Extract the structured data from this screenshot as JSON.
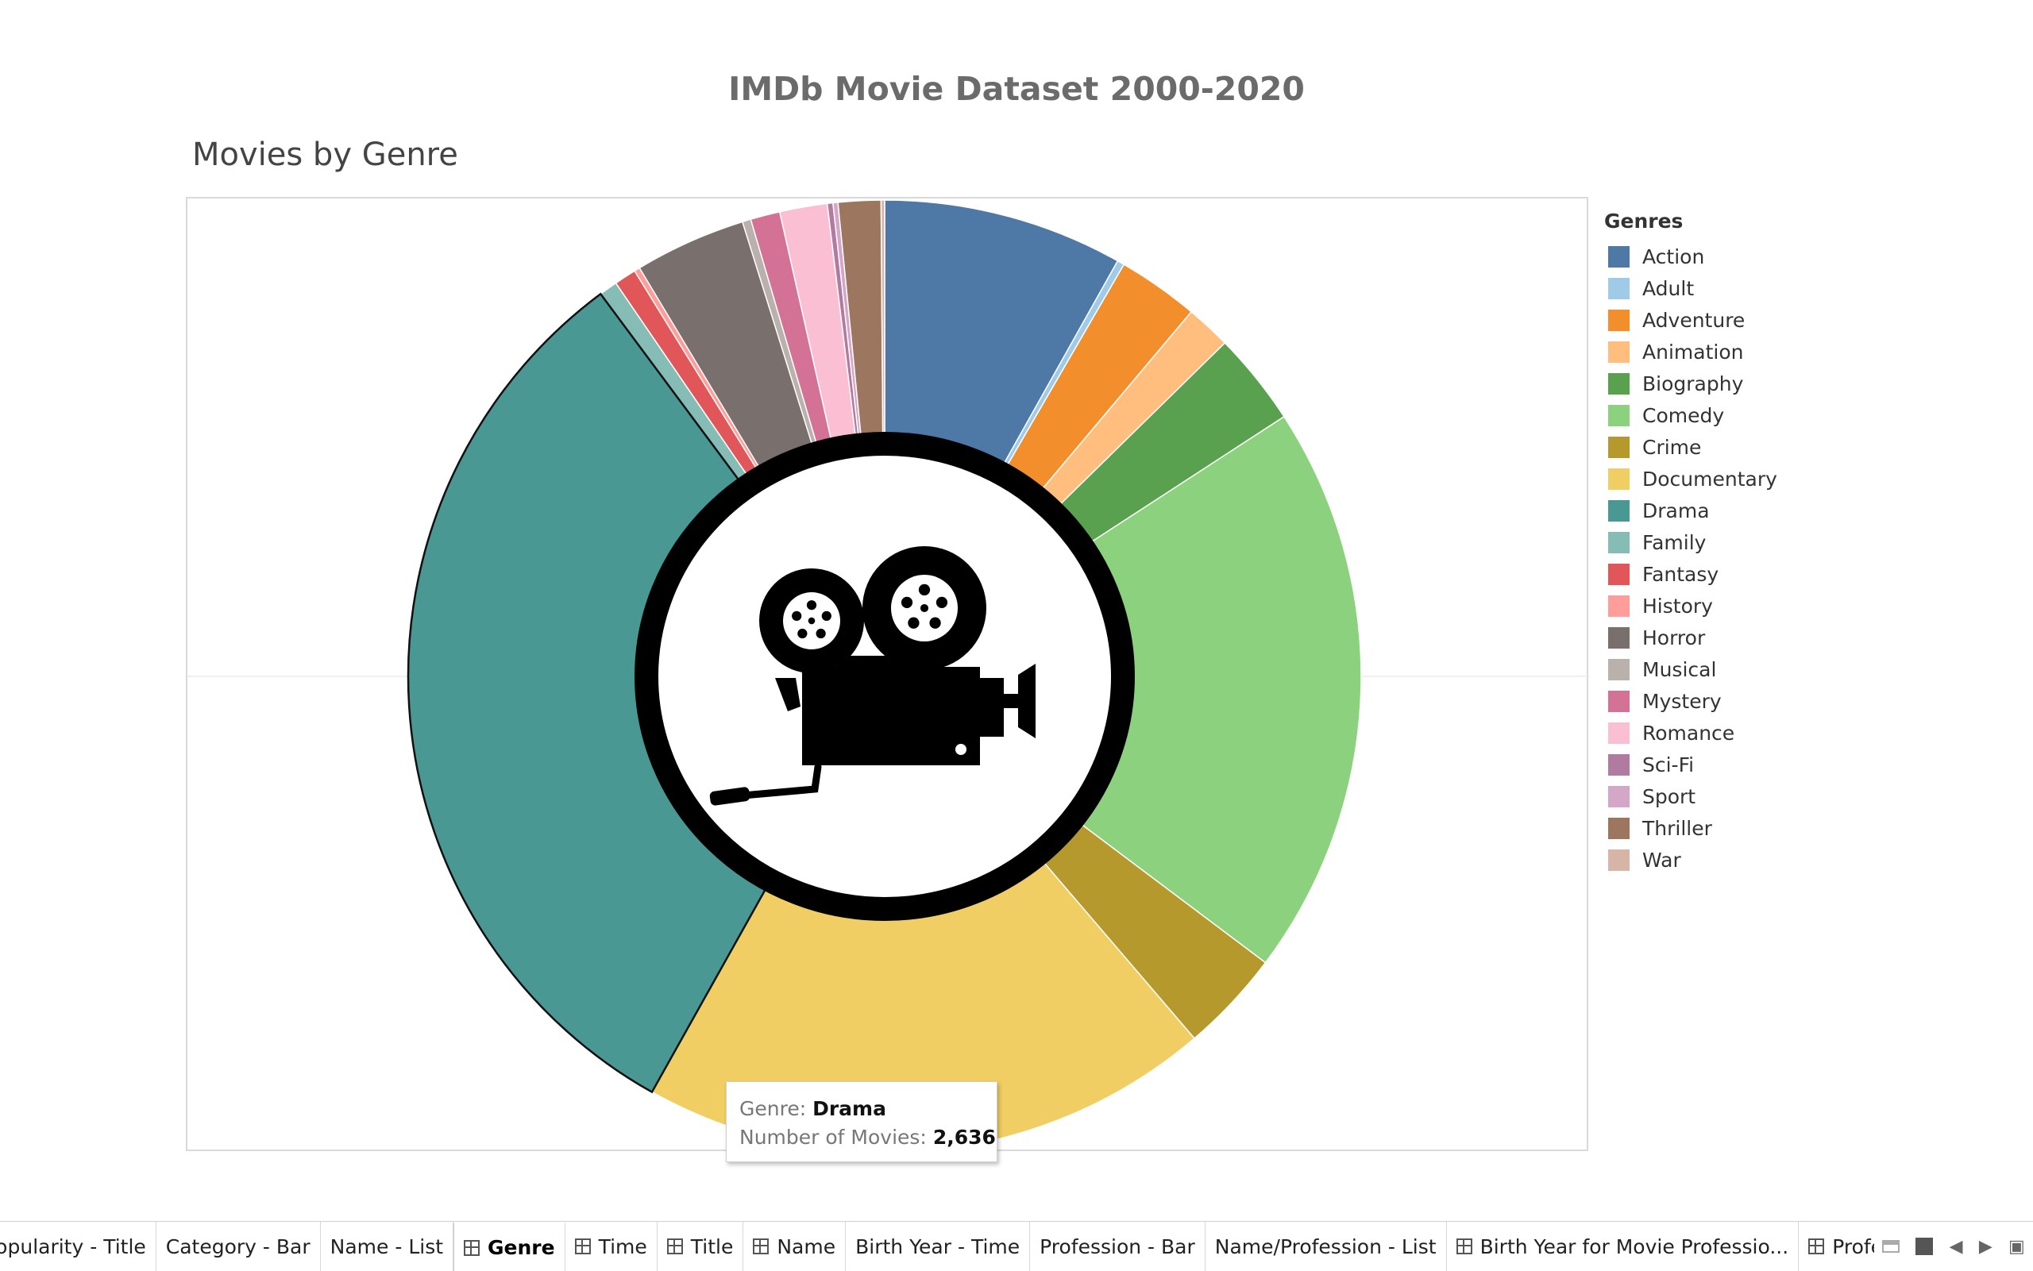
{
  "dashboard_title": "IMDb Movie Dataset 2000-2020",
  "sheet_title": "Movies by Genre",
  "tooltip": {
    "genre_key": "Genre:",
    "genre_value": "Drama",
    "count_key": "Number of Movies:",
    "count_value": "2,636"
  },
  "legend": {
    "title": "Genres",
    "items": [
      {
        "label": "Action",
        "color": "#4e79a7"
      },
      {
        "label": "Adult",
        "color": "#a0cbe8"
      },
      {
        "label": "Adventure",
        "color": "#f28e2b"
      },
      {
        "label": "Animation",
        "color": "#ffbe7d"
      },
      {
        "label": "Biography",
        "color": "#59a14f"
      },
      {
        "label": "Comedy",
        "color": "#8cd17d"
      },
      {
        "label": "Crime",
        "color": "#b6992d"
      },
      {
        "label": "Documentary",
        "color": "#f1ce63"
      },
      {
        "label": "Drama",
        "color": "#499894"
      },
      {
        "label": "Family",
        "color": "#86bcb6"
      },
      {
        "label": "Fantasy",
        "color": "#e15759"
      },
      {
        "label": "History",
        "color": "#ff9d9a"
      },
      {
        "label": "Horror",
        "color": "#79706e"
      },
      {
        "label": "Musical",
        "color": "#bab0ac"
      },
      {
        "label": "Mystery",
        "color": "#d37295"
      },
      {
        "label": "Romance",
        "color": "#fabfd2"
      },
      {
        "label": "Sci-Fi",
        "color": "#b07aa1"
      },
      {
        "label": "Sport",
        "color": "#d4a6c8"
      },
      {
        "label": "Thriller",
        "color": "#9d7660"
      },
      {
        "label": "War",
        "color": "#d7b5a6"
      }
    ]
  },
  "chart_data": {
    "type": "pie",
    "title": "Movies by Genre",
    "measure": "Number of Movies",
    "legend_position": "right",
    "center_icon": "movie-camera-icon",
    "highlighted": "Drama",
    "categories": [
      "Action",
      "Adult",
      "Adventure",
      "Animation",
      "Biography",
      "Comedy",
      "Crime",
      "Documentary",
      "Drama",
      "Family",
      "Fantasy",
      "History",
      "Horror",
      "Musical",
      "Mystery",
      "Romance",
      "Sci-Fi",
      "Sport",
      "Thriller",
      "War"
    ],
    "values": [
      676,
      20,
      229,
      127,
      263,
      1616,
      289,
      1611,
      2636,
      52,
      62,
      16,
      314,
      24,
      83,
      134,
      16,
      14,
      120,
      10
    ]
  },
  "tabs": [
    {
      "label": "Popularity - Title",
      "icon": false,
      "active": false
    },
    {
      "label": "Category - Bar",
      "icon": false,
      "active": false
    },
    {
      "label": "Name - List",
      "icon": false,
      "active": false
    },
    {
      "label": "Genre",
      "icon": true,
      "active": true
    },
    {
      "label": "Time",
      "icon": true,
      "active": false
    },
    {
      "label": "Title",
      "icon": true,
      "active": false
    },
    {
      "label": "Name",
      "icon": true,
      "active": false
    },
    {
      "label": "Birth Year - Time",
      "icon": false,
      "active": false
    },
    {
      "label": "Profession - Bar",
      "icon": false,
      "active": false
    },
    {
      "label": "Name/Profession - List",
      "icon": false,
      "active": false
    },
    {
      "label": "Birth Year for Movie Professio...",
      "icon": true,
      "active": false
    },
    {
      "label": "Profession",
      "icon": true,
      "active": false
    }
  ]
}
